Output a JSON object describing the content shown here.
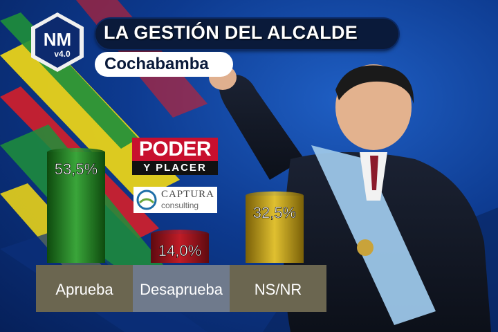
{
  "header": {
    "title": "LA GESTIÓN DEL ALCALDE",
    "subtitle": "Cochabamba"
  },
  "logos": {
    "nm": "NM v4.0",
    "poder_top": "PODER",
    "poder_bottom": "Y PLACER",
    "captura_name": "CAPTURA",
    "captura_sub": "consulting"
  },
  "colors": {
    "aprueba": "#1f7a1f",
    "desaprueba": "#a0141c",
    "nsnr": "#c9a514",
    "label_box_1": "#6b6650",
    "label_box_2": "#6f7a8c",
    "label_box_3": "#6b6650"
  },
  "chart_data": {
    "type": "bar",
    "categories": [
      "Aprueba",
      "Desaprueba",
      "NS/NR"
    ],
    "values": [
      53.5,
      14.0,
      32.5
    ],
    "value_labels": [
      "53,5%",
      "14,0%",
      "32,5%"
    ],
    "title": "LA GESTIÓN DEL ALCALDE",
    "subtitle": "Cochabamba",
    "ylim": [
      0,
      60
    ],
    "grid": false,
    "legend": "none"
  }
}
